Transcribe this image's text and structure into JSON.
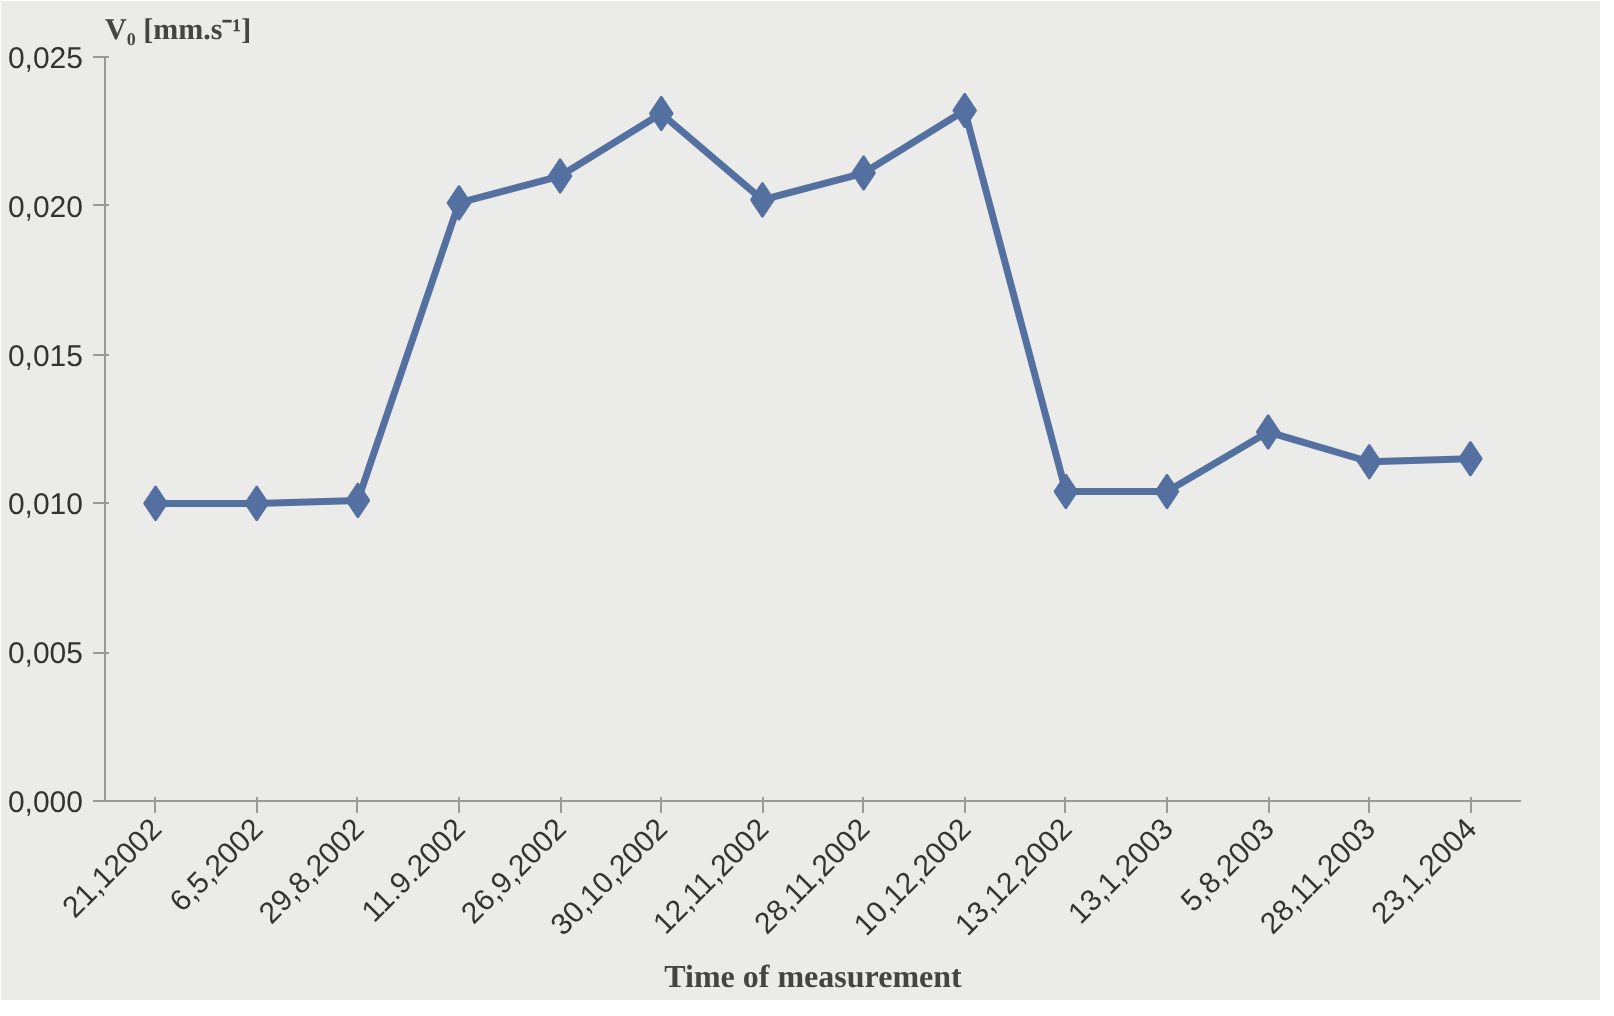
{
  "chart_data": {
    "type": "line",
    "ylabel": "V₀ [mm.s⁻¹]",
    "xlabel": "Time of measurement",
    "categories": [
      "21,12002",
      "6,5,2002",
      "29,8,2002",
      "11.9.2002",
      "26,9,2002",
      "30,10,2002",
      "12,11,2002",
      "28,11,2002",
      "10,12,2002",
      "13,12,2002",
      "13,1,2003",
      "5,8,2003",
      "28,11,2003",
      "23,1,2004"
    ],
    "series": [
      {
        "color": "#5470a0",
        "values": [
          0.01,
          0.01,
          0.0101,
          0.0201,
          0.021,
          0.0231,
          0.0202,
          0.0211,
          0.0232,
          0.0104,
          0.0104,
          0.0124,
          0.0114,
          0.0115
        ]
      }
    ],
    "ylim": [
      0,
      0.025
    ],
    "yticks": [
      {
        "value": 0,
        "label": "0,000"
      },
      {
        "value": 0.005,
        "label": "0,005"
      },
      {
        "value": 0.01,
        "label": "0,010"
      },
      {
        "value": 0.015,
        "label": "0,015"
      },
      {
        "value": 0.02,
        "label": "0,020"
      },
      {
        "value": 0.025,
        "label": "0,025"
      }
    ],
    "grid": false,
    "marker": "diamond",
    "line_style": "solid"
  }
}
